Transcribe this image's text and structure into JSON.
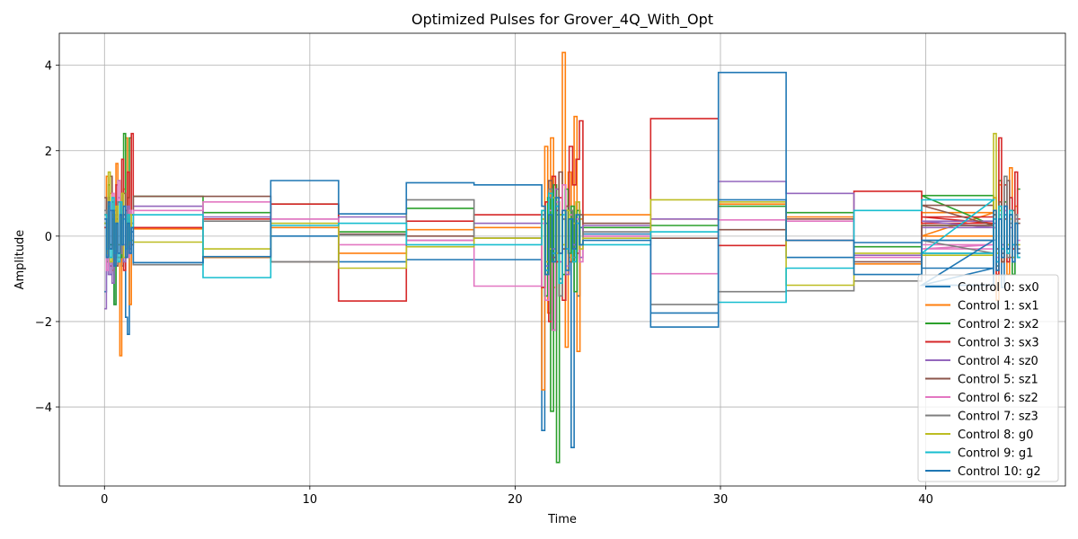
{
  "chart_data": {
    "type": "line",
    "title": "Optimized Pulses for Grover_4Q_With_Opt",
    "xlabel": "Time",
    "ylabel": "Amplitude",
    "xlim": [
      -2.2,
      46.8
    ],
    "ylim": [
      -5.85,
      4.75
    ],
    "xticks": [
      0,
      10,
      20,
      30,
      40
    ],
    "yticks": [
      -4,
      -2,
      0,
      2,
      4
    ],
    "grid": true,
    "legend_position": "lower-right",
    "segment_boundaries": [
      1.4,
      4.8,
      8.1,
      11.4,
      14.7,
      18.0,
      21.3,
      23.3,
      26.6,
      29.9,
      33.2,
      36.5,
      39.8,
      43.3
    ],
    "series": [
      {
        "name": "Control 0: sx0",
        "color": "#1f77b4",
        "burst1": [
          -1.3,
          -0.5,
          0.6,
          -0.9,
          0.4,
          -1.6,
          0.3,
          -0.5,
          0.2,
          -0.7,
          0.5,
          -1.9,
          -2.3,
          -0.4,
          0.1
        ],
        "burst2": [
          -4.55,
          0.3,
          -0.6,
          0.8,
          -2.2,
          0.5,
          -1.0,
          0.4,
          -0.3,
          0.6,
          -4.95,
          0.3,
          -1.4,
          0.2
        ],
        "burst3": [
          0.2,
          -0.8,
          0.4,
          -1.2,
          0.6,
          -0.3,
          0.5,
          -0.9,
          0.3,
          -0.5
        ],
        "steps": [
          -0.62,
          -0.5,
          0.0,
          -0.6,
          -0.55,
          -0.55,
          0.05,
          -1.8,
          0.85,
          -0.5,
          -0.15,
          -0.75,
          -1.15
        ]
      },
      {
        "name": "Control 1: sx1",
        "color": "#ff7f0e",
        "burst1": [
          0.5,
          1.4,
          -0.3,
          1.0,
          -0.8,
          0.6,
          1.7,
          -0.5,
          -2.8,
          0.2,
          1.1,
          2.3,
          0.4,
          -1.6,
          0.3
        ],
        "burst2": [
          -3.6,
          2.1,
          -1.8,
          2.3,
          -1.2,
          0.8,
          -1.1,
          4.3,
          -2.6,
          1.5,
          -0.6,
          2.8,
          -2.7,
          0.4
        ],
        "burst3": [
          0.9,
          -1.5,
          1.2,
          -0.6,
          0.4,
          -0.9,
          1.6,
          -0.3,
          0.7,
          -0.4
        ],
        "steps": [
          0.17,
          -0.5,
          0.2,
          -0.4,
          0.15,
          0.2,
          0.5,
          0.4,
          0.75,
          0.45,
          -0.65,
          0.55,
          0.0
        ]
      },
      {
        "name": "Control 2: sx2",
        "color": "#2ca02c",
        "burst1": [
          0.3,
          -0.6,
          1.2,
          -0.2,
          0.8,
          -1.6,
          0.4,
          1.3,
          -0.5,
          0.6,
          2.4,
          -0.3,
          0.9,
          2.3,
          0.5
        ],
        "burst2": [
          0.6,
          -1.4,
          0.9,
          -4.1,
          1.2,
          -5.3,
          0.5,
          -0.9,
          1.1,
          -0.4,
          0.7,
          -1.3,
          0.6,
          -0.2
        ],
        "burst3": [
          0.5,
          -0.7,
          1.3,
          -0.4,
          0.8,
          -0.3,
          0.6,
          -0.9,
          0.4,
          1.1
        ],
        "steps": [
          0.93,
          0.55,
          0.75,
          0.1,
          0.65,
          -0.05,
          0.2,
          0.25,
          0.7,
          0.55,
          -0.25,
          0.25,
          0.95
        ]
      },
      {
        "name": "Control 3: sx3",
        "color": "#d62728",
        "burst1": [
          0.2,
          -0.4,
          0.9,
          -0.7,
          0.5,
          -0.2,
          1.2,
          -0.6,
          0.4,
          1.8,
          -0.8,
          0.6,
          1.5,
          -0.3,
          2.4
        ],
        "burst2": [
          -1.2,
          0.8,
          -2.0,
          1.4,
          -0.6,
          0.9,
          -1.5,
          0.7,
          2.1,
          1.2,
          1.8,
          2.7
        ],
        "burst3": [
          0.6,
          -0.9,
          2.3,
          -0.4,
          1.2,
          -0.6,
          0.9,
          -0.3,
          1.5,
          0.4
        ],
        "steps": [
          0.2,
          0.4,
          0.75,
          -1.52,
          0.35,
          0.5,
          0.0,
          2.75,
          -0.22,
          -0.1,
          1.05,
          0.3,
          0.45
        ]
      },
      {
        "name": "Control 4: sz0",
        "color": "#9467bd",
        "burst1": [
          -1.7,
          0.3,
          -0.9,
          0.6,
          -1.1,
          0.4,
          -0.5,
          0.9,
          -0.3,
          0.5,
          -0.6,
          0.2,
          0.7,
          -0.4,
          0.3
        ],
        "burst2": [
          0.5,
          -0.7,
          0.9,
          -0.3,
          1.1,
          -0.6,
          0.4,
          -0.9,
          0.6,
          -0.2,
          0.8,
          -0.5
        ],
        "burst3": [
          0.3,
          -0.6,
          0.5,
          -0.2,
          0.7,
          -0.4,
          0.2,
          -0.5,
          0.4,
          -0.3
        ],
        "steps": [
          0.7,
          0.45,
          0.4,
          0.45,
          -0.1,
          0.3,
          0.25,
          0.4,
          1.28,
          1.0,
          -0.45,
          0.2,
          0.35
        ]
      },
      {
        "name": "Control 5: sz1",
        "color": "#8c564b",
        "burst1": [
          0.9,
          -0.4,
          0.6,
          1.4,
          -0.2,
          0.5,
          -0.7,
          0.8,
          -0.3,
          0.4,
          1.0,
          -0.5,
          0.3,
          0.6,
          -0.2
        ],
        "burst2": [
          0.4,
          -0.8,
          1.3,
          -0.5,
          0.6,
          1.5,
          -0.3,
          0.7,
          -0.6,
          0.3,
          -0.4,
          0.5
        ],
        "burst3": [
          0.5,
          -0.3,
          0.8,
          -0.6,
          0.4,
          1.3,
          -0.5,
          0.6,
          -0.2,
          0.3
        ],
        "steps": [
          0.93,
          0.93,
          -0.6,
          0.05,
          0.0,
          -0.05,
          0.3,
          -0.05,
          0.15,
          0.4,
          -0.6,
          0.25,
          0.72
        ]
      },
      {
        "name": "Control 6: sz2",
        "color": "#e377c2",
        "burst1": [
          0.4,
          -0.8,
          0.6,
          -0.3,
          1.0,
          -0.6,
          0.5,
          1.3,
          -0.4,
          0.7,
          -0.2,
          0.3,
          -0.5,
          0.6,
          0.2
        ],
        "burst2": [
          0.3,
          -1.5,
          0.6,
          -2.2,
          0.8,
          -0.4,
          1.2,
          -0.7,
          0.5,
          -0.3,
          0.4,
          -0.6
        ],
        "burst3": [
          0.2,
          -0.5,
          0.4,
          -0.3,
          0.6,
          -0.4,
          0.3,
          -0.2,
          0.5,
          -0.1
        ],
        "steps": [
          0.6,
          0.8,
          0.4,
          -0.2,
          -0.1,
          -1.17,
          0.0,
          -0.88,
          0.38,
          0.35,
          -0.5,
          -0.2,
          -0.3
        ]
      },
      {
        "name": "Control 7: sz3",
        "color": "#7f7f7f",
        "burst1": [
          0.6,
          -0.5,
          0.9,
          -0.3,
          0.4,
          -0.7,
          0.5,
          0.8,
          -0.4,
          0.3,
          0.5,
          -0.2,
          0.4,
          -0.3,
          0.2
        ],
        "burst2": [
          0.5,
          -0.9,
          1.1,
          -0.6,
          0.7,
          -1.4,
          0.4,
          -0.3,
          0.6,
          -0.5,
          0.3,
          -0.2
        ],
        "burst3": [
          0.4,
          -0.7,
          0.6,
          -0.4,
          1.4,
          -0.5,
          0.3,
          -0.6,
          0.5,
          -0.3
        ],
        "steps": [
          -0.67,
          0.35,
          -0.6,
          0.03,
          0.85,
          -0.05,
          0.1,
          -1.6,
          -1.3,
          -1.28,
          -1.05,
          -0.4,
          -0.1
        ]
      },
      {
        "name": "Control 8: g0",
        "color": "#bcbd22",
        "burst1": [
          0.3,
          -0.4,
          1.5,
          -0.6,
          0.5,
          -0.3,
          0.7,
          -0.2,
          0.4,
          1.0,
          -0.5,
          0.3,
          -0.2,
          0.5,
          -0.1
        ],
        "burst2": [
          0.4,
          -0.6,
          -0.3,
          0.9,
          -0.4,
          0.5,
          -0.2,
          0.6,
          -0.5,
          0.3,
          0.8,
          -0.3
        ],
        "burst3": [
          2.4,
          -0.4,
          0.6,
          -0.3,
          0.5,
          -0.2,
          0.4,
          -0.5,
          0.3,
          -0.2
        ],
        "steps": [
          -0.14,
          -0.3,
          0.3,
          -0.75,
          -0.25,
          -0.05,
          -0.05,
          0.85,
          0.8,
          -1.15,
          -0.4,
          -0.45,
          -0.45
        ]
      },
      {
        "name": "Control 9: g1",
        "color": "#17becf",
        "burst1": [
          0.5,
          -0.3,
          0.7,
          -0.5,
          0.9,
          -0.4,
          0.3,
          -0.6,
          0.8,
          -0.2,
          0.4,
          -0.3,
          0.5,
          -0.1,
          0.2
        ],
        "burst2": [
          0.6,
          -0.8,
          1.0,
          -0.4,
          0.7,
          -1.1,
          0.5,
          -0.3,
          0.4,
          -0.6,
          0.3,
          -0.2
        ],
        "burst3": [
          0.4,
          -0.6,
          0.7,
          -0.3,
          0.5,
          -0.4,
          0.6,
          -0.2,
          0.3,
          -0.5
        ],
        "steps": [
          0.5,
          -0.97,
          0.25,
          0.3,
          -0.2,
          -0.2,
          -0.2,
          0.1,
          -1.55,
          -0.75,
          0.6,
          0.85,
          -0.4
        ]
      },
      {
        "name": "Control 10: g2",
        "color": "#1f77b4",
        "burst1": [
          0.4,
          -0.5,
          0.8,
          -0.3,
          0.6,
          -0.7,
          0.3,
          -0.4,
          0.5,
          -0.2,
          0.7,
          -0.5,
          0.3,
          -0.4,
          0.2
        ],
        "burst2": [
          0.7,
          -0.9,
          0.5,
          -0.6,
          0.9,
          -0.4,
          0.6,
          -0.8,
          0.4,
          -0.3,
          0.5,
          -0.2
        ],
        "burst3": [
          0.6,
          -0.8,
          0.4,
          -0.5,
          0.7,
          -0.3,
          0.5,
          -0.6,
          0.3,
          -0.4
        ],
        "steps": [
          -0.62,
          -0.48,
          1.3,
          0.52,
          1.25,
          1.2,
          -0.1,
          -2.13,
          3.83,
          -0.1,
          -0.9,
          -0.1,
          -1.15
        ]
      }
    ]
  }
}
